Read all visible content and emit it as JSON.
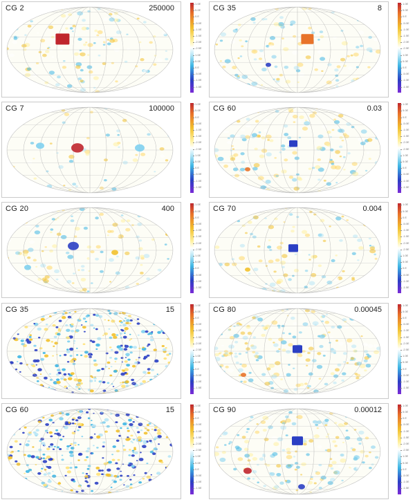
{
  "panels": [
    {
      "id": "cg2",
      "label": "CG 2",
      "value": "250000"
    },
    {
      "id": "cg35a",
      "label": "CG 35",
      "value": "8"
    },
    {
      "id": "cg7",
      "label": "CG 7",
      "value": "100000"
    },
    {
      "id": "cg60a",
      "label": "CG 60",
      "value": "0.03"
    },
    {
      "id": "cg20",
      "label": "CG 20",
      "value": "400"
    },
    {
      "id": "cg70",
      "label": "CG 70",
      "value": "0.004"
    },
    {
      "id": "cg35b",
      "label": "CG 35",
      "value": "15"
    },
    {
      "id": "cg80",
      "label": "CG 80",
      "value": "0.00045"
    },
    {
      "id": "cg60b",
      "label": "CG 60",
      "value": "15"
    },
    {
      "id": "cg90",
      "label": "CG 90",
      "value": "0.00012"
    }
  ],
  "colors": {
    "red": "#c0262d",
    "orange": "#e8732a",
    "yellow": "#f2c12e",
    "lightblue": "#7fd0ef",
    "blue": "#2b3fc4",
    "purple": "#7a2bd6"
  }
}
